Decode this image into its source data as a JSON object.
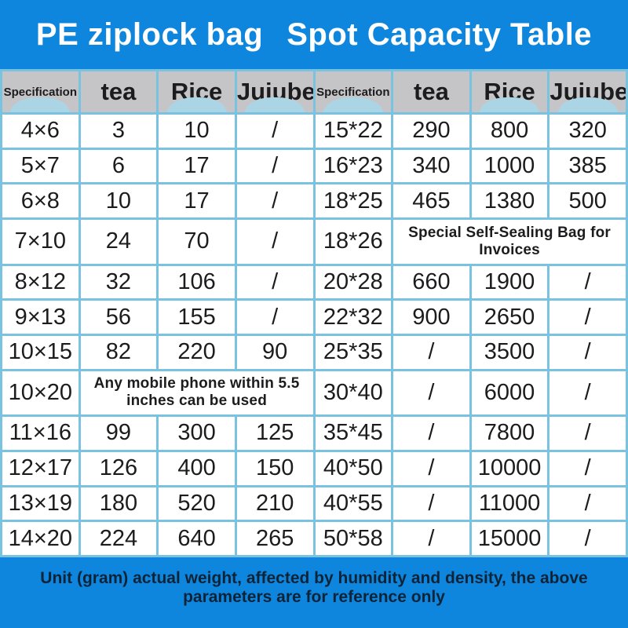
{
  "title": {
    "part1": "PE ziplock bag",
    "part2": "Spot Capacity Table"
  },
  "colors": {
    "banner_blue": "#0e86dd",
    "grid_blue": "#79c2e0",
    "header_gray": "#c5c5c8",
    "arch_blue": "#abd5e5",
    "text_dark": "#1c1c1e",
    "footer_text": "#0d2438"
  },
  "table": {
    "columns": [
      "Specification",
      "tea",
      "Rice",
      "Jujube",
      "Specification",
      "tea",
      "Rice",
      "Jujube"
    ],
    "rows": [
      [
        {
          "t": "4×6"
        },
        {
          "t": "3"
        },
        {
          "t": "10"
        },
        {
          "t": "/"
        },
        {
          "t": "15*22"
        },
        {
          "t": "290"
        },
        {
          "t": "800"
        },
        {
          "t": "320"
        }
      ],
      [
        {
          "t": "5×7"
        },
        {
          "t": "6"
        },
        {
          "t": "17"
        },
        {
          "t": "/"
        },
        {
          "t": "16*23"
        },
        {
          "t": "340"
        },
        {
          "t": "1000"
        },
        {
          "t": "385"
        }
      ],
      [
        {
          "t": "6×8"
        },
        {
          "t": "10"
        },
        {
          "t": "17"
        },
        {
          "t": "/"
        },
        {
          "t": "18*25"
        },
        {
          "t": "465"
        },
        {
          "t": "1380"
        },
        {
          "t": "500"
        }
      ],
      [
        {
          "t": "7×10"
        },
        {
          "t": "24"
        },
        {
          "t": "70"
        },
        {
          "t": "/"
        },
        {
          "t": "18*26"
        },
        {
          "t": "Special Self-Sealing Bag for Invoices",
          "span": 3
        }
      ],
      [
        {
          "t": "8×12"
        },
        {
          "t": "32"
        },
        {
          "t": "106"
        },
        {
          "t": "/"
        },
        {
          "t": "20*28"
        },
        {
          "t": "660"
        },
        {
          "t": "1900"
        },
        {
          "t": "/"
        }
      ],
      [
        {
          "t": "9×13"
        },
        {
          "t": "56"
        },
        {
          "t": "155"
        },
        {
          "t": "/"
        },
        {
          "t": "22*32"
        },
        {
          "t": "900"
        },
        {
          "t": "2650"
        },
        {
          "t": "/"
        }
      ],
      [
        {
          "t": "10×15"
        },
        {
          "t": "82"
        },
        {
          "t": "220"
        },
        {
          "t": "90"
        },
        {
          "t": "25*35"
        },
        {
          "t": "/"
        },
        {
          "t": "3500"
        },
        {
          "t": "/"
        }
      ],
      [
        {
          "t": "10×20"
        },
        {
          "t": "Any mobile phone within 5.5 inches can be used",
          "span": 3
        },
        {
          "t": "30*40"
        },
        {
          "t": "/"
        },
        {
          "t": "6000"
        },
        {
          "t": "/"
        }
      ],
      [
        {
          "t": "11×16"
        },
        {
          "t": "99"
        },
        {
          "t": "300"
        },
        {
          "t": "125"
        },
        {
          "t": "35*45"
        },
        {
          "t": "/"
        },
        {
          "t": "7800"
        },
        {
          "t": "/"
        }
      ],
      [
        {
          "t": "12×17"
        },
        {
          "t": "126"
        },
        {
          "t": "400"
        },
        {
          "t": "150"
        },
        {
          "t": "40*50"
        },
        {
          "t": "/"
        },
        {
          "t": "10000"
        },
        {
          "t": "/"
        }
      ],
      [
        {
          "t": "13×19"
        },
        {
          "t": "180"
        },
        {
          "t": "520"
        },
        {
          "t": "210"
        },
        {
          "t": "40*55"
        },
        {
          "t": "/"
        },
        {
          "t": "11000"
        },
        {
          "t": "/"
        }
      ],
      [
        {
          "t": "14×20"
        },
        {
          "t": "224"
        },
        {
          "t": "640"
        },
        {
          "t": "265"
        },
        {
          "t": "50*58"
        },
        {
          "t": "/"
        },
        {
          "t": "15000"
        },
        {
          "t": "/"
        }
      ]
    ]
  },
  "footer": {
    "note": "Unit (gram) actual weight, affected by humidity and density, the above parameters are for reference only"
  }
}
